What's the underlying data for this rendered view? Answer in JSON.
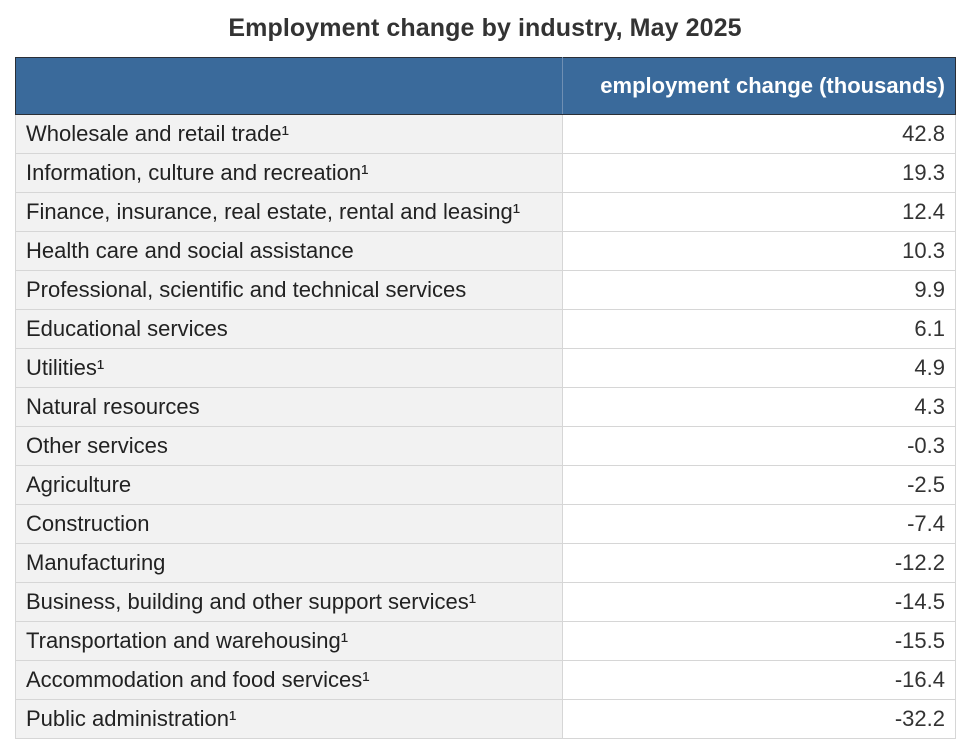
{
  "title": "Employment change by industry, May 2025",
  "chart_data": {
    "type": "table",
    "title": "Employment change by industry, May 2025",
    "columns": [
      "",
      "employment change (thousands)"
    ],
    "rows": [
      {
        "label": "Wholesale and retail trade¹",
        "value": "42.8"
      },
      {
        "label": "Information, culture and recreation¹",
        "value": "19.3"
      },
      {
        "label": "Finance, insurance, real estate, rental and leasing¹",
        "value": "12.4"
      },
      {
        "label": "Health care and social assistance",
        "value": "10.3"
      },
      {
        "label": "Professional, scientific and technical services",
        "value": "9.9"
      },
      {
        "label": "Educational services",
        "value": "6.1"
      },
      {
        "label": "Utilities¹",
        "value": "4.9"
      },
      {
        "label": "Natural resources",
        "value": "4.3"
      },
      {
        "label": "Other services",
        "value": "-0.3"
      },
      {
        "label": "Agriculture",
        "value": "-2.5"
      },
      {
        "label": "Construction",
        "value": "-7.4"
      },
      {
        "label": "Manufacturing",
        "value": "-12.2"
      },
      {
        "label": "Business, building and other support services¹",
        "value": "-14.5"
      },
      {
        "label": "Transportation and warehousing¹",
        "value": "-15.5"
      },
      {
        "label": "Accommodation and food services¹",
        "value": "-16.4"
      },
      {
        "label": "Public administration¹",
        "value": "-32.2"
      }
    ]
  },
  "colors": {
    "header_background": "#3a6a9b",
    "header_text": "#ffffff",
    "label_column_background": "#f2f2f2",
    "value_column_background": "#ffffff",
    "grid_line": "#d6d6d6"
  }
}
